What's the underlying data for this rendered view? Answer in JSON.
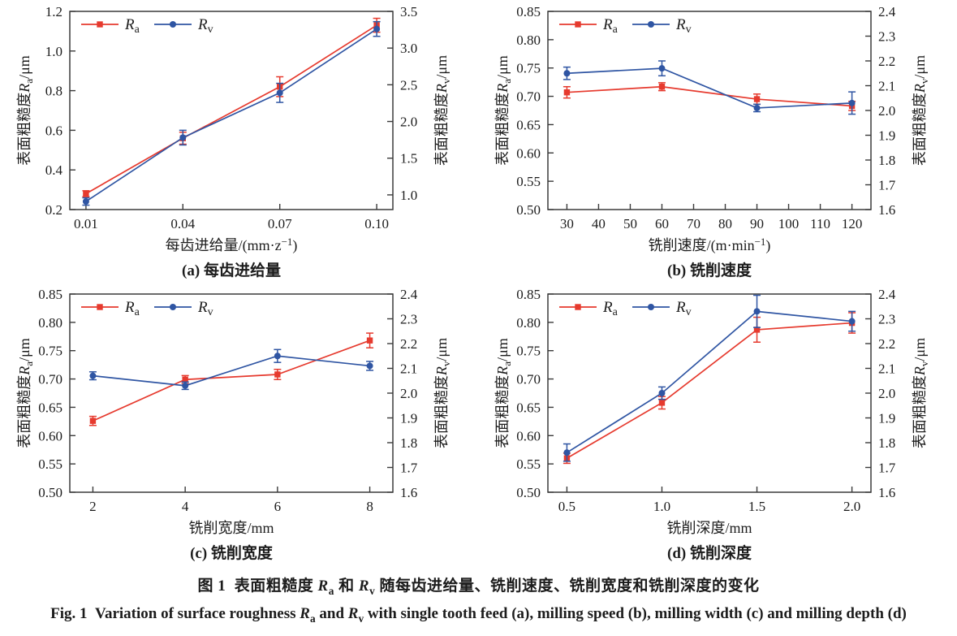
{
  "figure": {
    "caption_zh_parts": [
      {
        "t": "图 1  表面粗糙度 "
      },
      {
        "t": "R",
        "italic": true
      },
      {
        "t": "a",
        "sub": true
      },
      {
        "t": " 和 "
      },
      {
        "t": "R",
        "italic": true
      },
      {
        "t": "v",
        "sub": true
      },
      {
        "t": " 随每齿进给量、铣削速度、铣削宽度和铣削深度的变化"
      }
    ],
    "caption_en_parts": [
      {
        "t": "Fig. 1  Variation of surface roughness "
      },
      {
        "t": "R",
        "italic": true
      },
      {
        "t": "a",
        "sub": true
      },
      {
        "t": " and "
      },
      {
        "t": "R",
        "italic": true
      },
      {
        "t": "v",
        "sub": true
      },
      {
        "t": " with single tooth feed (a), milling speed (b), milling width (c) and milling depth (d)"
      }
    ]
  },
  "colors": {
    "ra": "#e63a2e",
    "rv": "#2f55a3",
    "axis": "#3a3a3a",
    "text": "#1c1c1c"
  },
  "legend": {
    "items": [
      {
        "key": "ra",
        "marker": "square",
        "label_parts": [
          {
            "t": "R",
            "italic": true
          },
          {
            "t": "a",
            "sub": true
          }
        ]
      },
      {
        "key": "rv",
        "marker": "circle",
        "label_parts": [
          {
            "t": "R",
            "italic": true
          },
          {
            "t": "v",
            "sub": true
          }
        ]
      }
    ]
  },
  "chart_data": [
    {
      "panel": "a",
      "type": "line",
      "caption": "(a) 每齿进给量",
      "xlabel_parts": [
        {
          "t": "每齿进给量/(mm·z"
        },
        {
          "t": "−1",
          "sup": true
        },
        {
          "t": ")"
        }
      ],
      "ylabel_left_parts": [
        {
          "t": "表面粗糙度"
        },
        {
          "t": "R",
          "italic": true
        },
        {
          "t": "a",
          "sub": true
        },
        {
          "t": "/μm"
        }
      ],
      "ylabel_right_parts": [
        {
          "t": "表面粗糙度"
        },
        {
          "t": "R",
          "italic": true
        },
        {
          "t": "v",
          "sub": true
        },
        {
          "t": "/μm"
        }
      ],
      "x": [
        0.01,
        0.04,
        0.07,
        0.1
      ],
      "xlim": [
        0.005,
        0.105
      ],
      "xticks": [
        0.01,
        0.04,
        0.07,
        0.1
      ],
      "xtick_labels": [
        "0.01",
        "0.04",
        "0.07",
        "0.10"
      ],
      "yleft": {
        "lim": [
          0.2,
          1.2
        ],
        "ticks": [
          0.2,
          0.4,
          0.6,
          0.8,
          1.0,
          1.2
        ],
        "labels": [
          "0.2",
          "0.4",
          "0.6",
          "0.8",
          "1.0",
          "1.2"
        ]
      },
      "yright": {
        "lim": [
          0.8,
          3.5
        ],
        "ticks": [
          1.0,
          1.5,
          2.0,
          2.5,
          3.0,
          3.5
        ],
        "labels": [
          "1.0",
          "1.5",
          "2.0",
          "2.5",
          "3.0",
          "3.5"
        ]
      },
      "series": [
        {
          "key": "ra",
          "axis": "left",
          "marker": "square",
          "values": [
            0.28,
            0.56,
            0.82,
            1.13
          ],
          "errors": [
            0.015,
            0.03,
            0.05,
            0.035
          ]
        },
        {
          "key": "rv",
          "axis": "right",
          "marker": "circle",
          "values": [
            0.91,
            1.78,
            2.39,
            3.26
          ],
          "errors": [
            0.05,
            0.1,
            0.13,
            0.1
          ]
        }
      ]
    },
    {
      "panel": "b",
      "type": "line",
      "caption": "(b) 铣削速度",
      "xlabel_parts": [
        {
          "t": "铣削速度/(m·min"
        },
        {
          "t": "−1",
          "sup": true
        },
        {
          "t": ")"
        }
      ],
      "ylabel_left_parts": [
        {
          "t": "表面粗糙度"
        },
        {
          "t": "R",
          "italic": true
        },
        {
          "t": "a",
          "sub": true
        },
        {
          "t": "/μm"
        }
      ],
      "ylabel_right_parts": [
        {
          "t": "表面粗糙度"
        },
        {
          "t": "R",
          "italic": true
        },
        {
          "t": "v",
          "sub": true
        },
        {
          "t": "/μm"
        }
      ],
      "x": [
        30,
        60,
        90,
        120
      ],
      "xlim": [
        24,
        126
      ],
      "xticks": [
        30,
        40,
        50,
        60,
        70,
        80,
        90,
        100,
        110,
        120
      ],
      "xtick_labels": [
        "30",
        "40",
        "50",
        "60",
        "70",
        "80",
        "90",
        "100",
        "110",
        "120"
      ],
      "yleft": {
        "lim": [
          0.5,
          0.85
        ],
        "ticks": [
          0.5,
          0.55,
          0.6,
          0.65,
          0.7,
          0.75,
          0.8,
          0.85
        ],
        "labels": [
          "0.50",
          "0.55",
          "0.60",
          "0.65",
          "0.70",
          "0.75",
          "0.80",
          "0.85"
        ]
      },
      "yright": {
        "lim": [
          1.6,
          2.4
        ],
        "ticks": [
          1.6,
          1.7,
          1.8,
          1.9,
          2.0,
          2.1,
          2.2,
          2.3,
          2.4
        ],
        "labels": [
          "1.6",
          "1.7",
          "1.8",
          "1.9",
          "2.0",
          "2.1",
          "2.2",
          "2.3",
          "2.4"
        ]
      },
      "series": [
        {
          "key": "ra",
          "axis": "left",
          "marker": "square",
          "values": [
            0.707,
            0.717,
            0.695,
            0.683
          ],
          "errors": [
            0.01,
            0.007,
            0.009,
            0.008
          ]
        },
        {
          "key": "rv",
          "axis": "right",
          "marker": "circle",
          "values": [
            2.15,
            2.17,
            2.01,
            2.03
          ],
          "errors": [
            0.025,
            0.03,
            0.015,
            0.045
          ]
        }
      ]
    },
    {
      "panel": "c",
      "type": "line",
      "caption": "(c) 铣削宽度",
      "xlabel_parts": [
        {
          "t": "铣削宽度/mm"
        }
      ],
      "ylabel_left_parts": [
        {
          "t": "表面粗糙度"
        },
        {
          "t": "R",
          "italic": true
        },
        {
          "t": "a",
          "sub": true
        },
        {
          "t": "/μm"
        }
      ],
      "ylabel_right_parts": [
        {
          "t": "表面粗糙度"
        },
        {
          "t": "R",
          "italic": true
        },
        {
          "t": "v",
          "sub": true
        },
        {
          "t": "/μm"
        }
      ],
      "x": [
        2,
        4,
        6,
        8
      ],
      "xlim": [
        1.5,
        8.5
      ],
      "xticks": [
        2,
        4,
        6,
        8
      ],
      "xtick_labels": [
        "2",
        "4",
        "6",
        "8"
      ],
      "yleft": {
        "lim": [
          0.5,
          0.85
        ],
        "ticks": [
          0.5,
          0.55,
          0.6,
          0.65,
          0.7,
          0.75,
          0.8,
          0.85
        ],
        "labels": [
          "0.50",
          "0.55",
          "0.60",
          "0.65",
          "0.70",
          "0.75",
          "0.80",
          "0.85"
        ]
      },
      "yright": {
        "lim": [
          1.6,
          2.4
        ],
        "ticks": [
          1.6,
          1.7,
          1.8,
          1.9,
          2.0,
          2.1,
          2.2,
          2.3,
          2.4
        ],
        "labels": [
          "1.6",
          "1.7",
          "1.8",
          "1.9",
          "2.0",
          "2.1",
          "2.2",
          "2.3",
          "2.4"
        ]
      },
      "series": [
        {
          "key": "ra",
          "axis": "left",
          "marker": "square",
          "values": [
            0.626,
            0.699,
            0.708,
            0.768
          ],
          "errors": [
            0.008,
            0.007,
            0.009,
            0.013
          ]
        },
        {
          "key": "rv",
          "axis": "right",
          "marker": "circle",
          "values": [
            2.07,
            2.03,
            2.15,
            2.11
          ],
          "errors": [
            0.016,
            0.015,
            0.026,
            0.018
          ]
        }
      ]
    },
    {
      "panel": "d",
      "type": "line",
      "caption": "(d) 铣削深度",
      "xlabel_parts": [
        {
          "t": "铣削深度/mm"
        }
      ],
      "ylabel_left_parts": [
        {
          "t": "表面粗糙度"
        },
        {
          "t": "R",
          "italic": true
        },
        {
          "t": "a",
          "sub": true
        },
        {
          "t": "/μm"
        }
      ],
      "ylabel_right_parts": [
        {
          "t": "表面粗糙度"
        },
        {
          "t": "R",
          "italic": true
        },
        {
          "t": "v",
          "sub": true
        },
        {
          "t": "/μm"
        }
      ],
      "x": [
        0.5,
        1.0,
        1.5,
        2.0
      ],
      "xlim": [
        0.4,
        2.1
      ],
      "xticks": [
        0.5,
        1.0,
        1.5,
        2.0
      ],
      "xtick_labels": [
        "0.5",
        "1.0",
        "1.5",
        "2.0"
      ],
      "yleft": {
        "lim": [
          0.5,
          0.85
        ],
        "ticks": [
          0.5,
          0.55,
          0.6,
          0.65,
          0.7,
          0.75,
          0.8,
          0.85
        ],
        "labels": [
          "0.50",
          "0.55",
          "0.60",
          "0.65",
          "0.70",
          "0.75",
          "0.80",
          "0.85"
        ]
      },
      "yright": {
        "lim": [
          1.6,
          2.4
        ],
        "ticks": [
          1.6,
          1.7,
          1.8,
          1.9,
          2.0,
          2.1,
          2.2,
          2.3,
          2.4
        ],
        "labels": [
          "1.6",
          "1.7",
          "1.8",
          "1.9",
          "2.0",
          "2.1",
          "2.2",
          "2.3",
          "2.4"
        ]
      },
      "series": [
        {
          "key": "ra",
          "axis": "left",
          "marker": "square",
          "values": [
            0.56,
            0.658,
            0.787,
            0.799
          ],
          "errors": [
            0.009,
            0.011,
            0.022,
            0.018
          ]
        },
        {
          "key": "rv",
          "axis": "right",
          "marker": "circle",
          "values": [
            1.76,
            2.0,
            2.33,
            2.29
          ],
          "errors": [
            0.035,
            0.025,
            0.065,
            0.04
          ]
        }
      ]
    }
  ]
}
